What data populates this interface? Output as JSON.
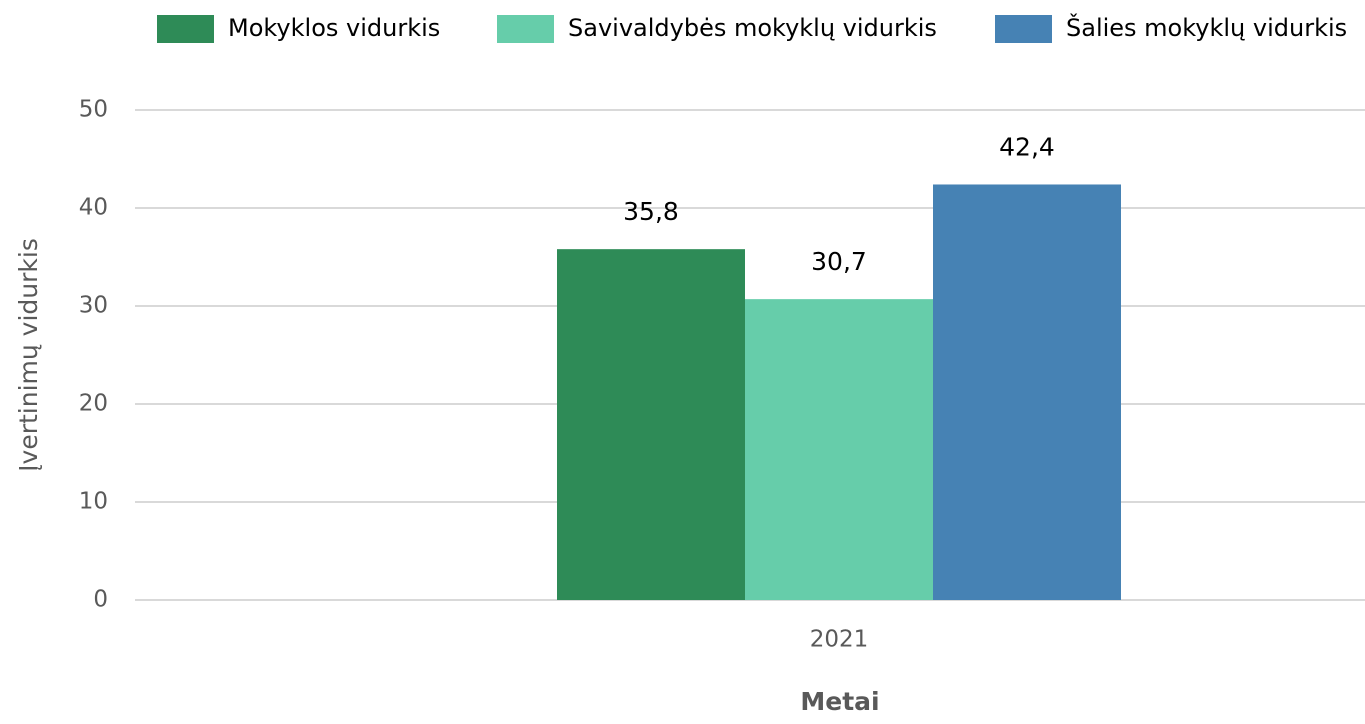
{
  "chart_data": {
    "type": "bar",
    "categories": [
      "2021"
    ],
    "series": [
      {
        "name": "Mokyklos vidurkis",
        "color": "#2e8b57",
        "values": [
          35.8
        ],
        "value_labels": [
          "35,8"
        ]
      },
      {
        "name": "Savivaldybės mokyklų vidurkis",
        "color": "#66cdaa",
        "values": [
          30.7
        ],
        "value_labels": [
          "30,7"
        ]
      },
      {
        "name": "Šalies mokyklų vidurkis",
        "color": "#4682b4",
        "values": [
          42.4
        ],
        "value_labels": [
          "42,4"
        ]
      }
    ],
    "ylim": [
      0,
      50
    ],
    "yticks": [
      0,
      10,
      20,
      30,
      40,
      50
    ],
    "grid": true,
    "xlabel": "Metai",
    "ylabel": "Įvertinimų vidurkis",
    "legend": "top"
  }
}
